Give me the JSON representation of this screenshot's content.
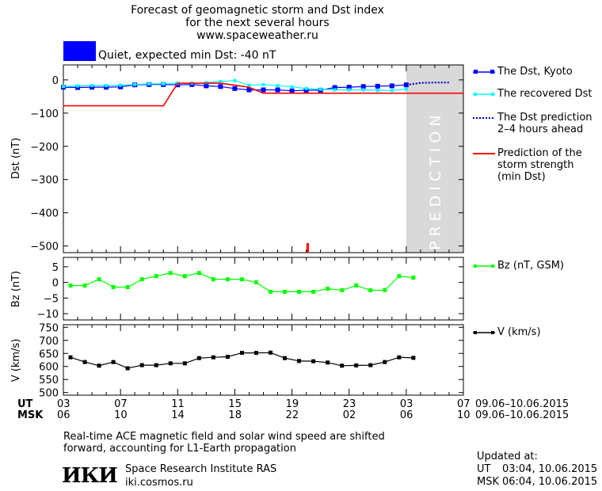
{
  "header": {
    "title_line1": "Forecast of geomagnetic storm and Dst index",
    "title_line2": "for the next several hours",
    "url": "www.spaceweather.ru"
  },
  "status": {
    "text": "Quiet, expected min Dst: -40 nT",
    "color": "#0000ff"
  },
  "prediction_label": "PREDICTION",
  "colors": {
    "dst_kyoto": "#0000ff",
    "dst_recovered": "#00ffff",
    "dst_prediction": "#0000cc",
    "storm_strength": "#ff0000",
    "bz": "#00ff00",
    "v": "#000000",
    "prediction_zone": "#d9d9d9"
  },
  "legend": {
    "dst_kyoto": "The Dst, Kyoto",
    "dst_recovered": "The recovered Dst",
    "dst_prediction_1": "The Dst prediction",
    "dst_prediction_2": "2–4 hours ahead",
    "storm_1": "Prediction of the",
    "storm_2": "storm strength",
    "storm_3": "(min Dst)",
    "bz": "Bz (nT, GSM)",
    "v": "V (km/s)"
  },
  "axes": {
    "dst_label": "Dst (nT)",
    "bz_label": "Bz (nT)",
    "v_label": "V (km/s)",
    "ut_label": "UT",
    "msk_label": "MSK",
    "ut_range": "09.06–10.06.2015",
    "msk_range": "09.06–10.06.2015"
  },
  "chart_data": [
    {
      "type": "line",
      "panel": "dst",
      "ylabel": "Dst (nT)",
      "ylim": [
        -520,
        45
      ],
      "yticks": [
        0,
        -100,
        -200,
        -300,
        -400,
        -500
      ],
      "xlim": [
        3,
        31
      ],
      "prediction_zone": [
        27,
        31
      ],
      "series": [
        {
          "name": "The Dst, Kyoto",
          "x": [
            3,
            4,
            5,
            6,
            7,
            8,
            9,
            10,
            11,
            12,
            13,
            14,
            15,
            16,
            17,
            18,
            19,
            20,
            21,
            22,
            23,
            24,
            25,
            26,
            27
          ],
          "values": [
            -22,
            -23,
            -22,
            -22,
            -21,
            -15,
            -14,
            -14,
            -15,
            -14,
            -18,
            -20,
            -26,
            -30,
            -30,
            -30,
            -33,
            -31,
            -31,
            -23,
            -22,
            -20,
            -19,
            -18,
            -15
          ]
        },
        {
          "name": "The recovered Dst",
          "x": [
            3,
            4,
            5,
            6,
            7,
            8,
            9,
            10,
            11,
            12,
            13,
            14,
            15,
            16,
            17,
            18,
            19,
            20,
            21,
            22,
            23,
            24,
            25,
            26,
            27
          ],
          "values": [
            -20,
            -18,
            -17,
            -17,
            -16,
            -14,
            -12,
            -12,
            -10,
            -10,
            -8,
            -5,
            -2,
            -16,
            -14,
            -17,
            -21,
            -26,
            -28,
            -30,
            -30,
            -30,
            -31,
            -32,
            -28
          ]
        },
        {
          "name": "The Dst prediction 2–4 hours ahead",
          "x": [
            27,
            28,
            29,
            30
          ],
          "values": [
            -15,
            -9,
            -8,
            -8
          ]
        },
        {
          "name": "Prediction of the storm strength (min Dst)",
          "x": [
            3,
            10,
            11,
            12,
            14,
            15,
            16,
            17,
            18,
            19,
            20,
            31
          ],
          "values": [
            -78,
            -78,
            -10,
            -10,
            -10,
            -16,
            -22,
            -40,
            -40,
            -40,
            -40,
            -40
          ]
        }
      ],
      "annotations": [
        {
          "type": "marker",
          "x": 20.1,
          "value": -500,
          "color": "#ff0000"
        }
      ]
    },
    {
      "type": "line",
      "panel": "bz",
      "ylabel": "Bz (nT)",
      "ylim": [
        -12,
        8
      ],
      "yticks": [
        5,
        0,
        -5,
        -10
      ],
      "series": [
        {
          "name": "Bz (nT, GSM)",
          "x": [
            3.5,
            4.5,
            5.5,
            6.5,
            7.5,
            8.5,
            9.5,
            10.5,
            11.5,
            12.5,
            13.5,
            14.5,
            15.5,
            16.5,
            17.5,
            18.5,
            19.5,
            20.5,
            21.5,
            22.5,
            23.5,
            24.5,
            25.5,
            26.5,
            27.5
          ],
          "values": [
            -1,
            -1,
            1,
            -1.5,
            -1.5,
            1,
            2,
            3,
            2,
            3,
            1,
            1,
            1,
            0,
            -3,
            -3,
            -3,
            -3,
            -2,
            -2.5,
            -1,
            -2.5,
            -2.5,
            2,
            1.5
          ]
        }
      ]
    },
    {
      "type": "line",
      "panel": "v",
      "ylabel": "V (km/s)",
      "ylim": [
        490,
        760
      ],
      "yticks": [
        500,
        550,
        600,
        650,
        700,
        750
      ],
      "series": [
        {
          "name": "V (km/s)",
          "x": [
            3.5,
            4.5,
            5.5,
            6.5,
            7.5,
            8.5,
            9.5,
            10.5,
            11.5,
            12.5,
            13.5,
            14.5,
            15.5,
            16.5,
            17.5,
            18.5,
            19.5,
            20.5,
            21.5,
            22.5,
            23.5,
            24.5,
            25.5,
            26.5,
            27.5
          ],
          "values": [
            635,
            617,
            603,
            617,
            593,
            605,
            605,
            612,
            612,
            632,
            635,
            637,
            652,
            652,
            653,
            632,
            621,
            620,
            615,
            603,
            604,
            605,
            617,
            635,
            633
          ]
        }
      ]
    }
  ],
  "x_axis": {
    "ut_ticks": [
      "03",
      "07",
      "11",
      "15",
      "19",
      "23",
      "03",
      "07"
    ],
    "msk_ticks": [
      "06",
      "10",
      "14",
      "18",
      "22",
      "02",
      "06",
      "10"
    ]
  },
  "footer": {
    "note_1": "Real-time ACE magnetic field and solar wind speed are shifted",
    "note_2": "forward, accounting for L1-Earth propagation",
    "institute": "Space Research Institute RAS",
    "site": "iki.cosmos.ru",
    "logo_text": "ИКИ",
    "updated_label": "Updated at:",
    "updated_ut_label": "UT",
    "updated_ut": "03:04, 10.06.2015",
    "updated_msk_label": "MSK",
    "updated_msk": "06:04, 10.06.2015"
  }
}
